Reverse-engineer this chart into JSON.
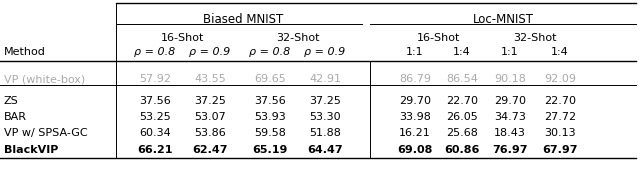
{
  "col_headers": [
    "Method",
    "ρ = 0.8",
    "ρ = 0.9",
    "ρ = 0.8",
    "ρ = 0.9",
    "1:1",
    "1:4",
    "1:1",
    "1:4"
  ],
  "rows": [
    {
      "method": "VP (white-box)",
      "values": [
        "57.92",
        "43.55",
        "69.65",
        "42.91",
        "86.79",
        "86.54",
        "90.18",
        "92.09"
      ],
      "bold": [
        false,
        false,
        false,
        false,
        false,
        false,
        false,
        false
      ],
      "gray": true
    },
    {
      "method": "ZS",
      "values": [
        "37.56",
        "37.25",
        "37.56",
        "37.25",
        "29.70",
        "22.70",
        "29.70",
        "22.70"
      ],
      "bold": [
        false,
        false,
        false,
        false,
        false,
        false,
        false,
        false
      ],
      "gray": false
    },
    {
      "method": "BAR",
      "values": [
        "53.25",
        "53.07",
        "53.93",
        "53.30",
        "33.98",
        "26.05",
        "34.73",
        "27.72"
      ],
      "bold": [
        false,
        false,
        false,
        false,
        false,
        false,
        false,
        false
      ],
      "gray": false
    },
    {
      "method": "VP w/ SPSA-GC",
      "values": [
        "60.34",
        "53.86",
        "59.58",
        "51.88",
        "16.21",
        "25.68",
        "18.43",
        "30.13"
      ],
      "bold": [
        false,
        false,
        false,
        false,
        false,
        false,
        false,
        false
      ],
      "gray": false
    },
    {
      "method": "BlackVIP",
      "values": [
        "66.21",
        "62.47",
        "65.19",
        "64.47",
        "69.08",
        "60.86",
        "76.97",
        "67.97"
      ],
      "bold": [
        true,
        true,
        true,
        true,
        true,
        true,
        true,
        true
      ],
      "gray": false
    }
  ],
  "gray_color": "#aaaaaa",
  "text_color": "#000000",
  "bg_color": "#ffffff",
  "fontsize": 8.0
}
